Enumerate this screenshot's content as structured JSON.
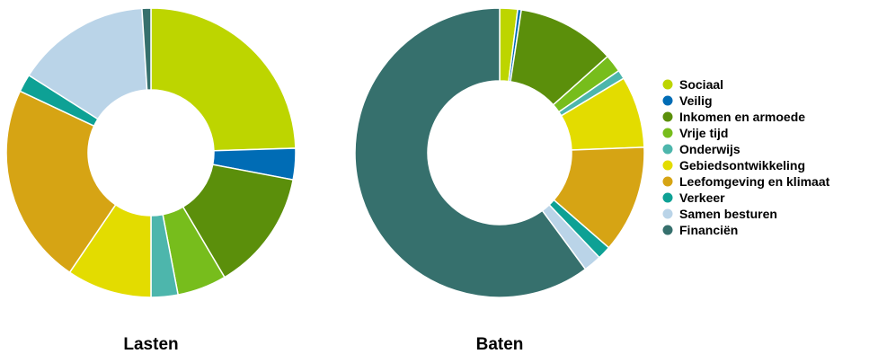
{
  "chart_data": [
    {
      "type": "pie",
      "title": "Lasten",
      "categories": [
        "Sociaal",
        "Veilig",
        "Inkomen en armoede",
        "Vrije tijd",
        "Onderwijs",
        "Gebiedsontwikkeling",
        "Leefomgeving en klimaat",
        "Verkeer",
        "Samen besturen",
        "Financiën"
      ],
      "values": [
        24.5,
        3.5,
        13.5,
        5.5,
        3.0,
        9.5,
        22.5,
        2.0,
        15.0,
        1.0
      ],
      "legend": "shared-right"
    },
    {
      "type": "pie",
      "title": "Baten",
      "categories": [
        "Sociaal",
        "Veilig",
        "Inkomen en armoede",
        "Vrije tijd",
        "Onderwijs",
        "Gebiedsontwikkeling",
        "Leefomgeving en klimaat",
        "Verkeer",
        "Samen besturen",
        "Financiën"
      ],
      "values": [
        2.0,
        0.4,
        11.0,
        2.0,
        1.0,
        8.0,
        12.0,
        1.5,
        2.0,
        60.1
      ],
      "legend": "right"
    }
  ],
  "legend": {
    "items": [
      {
        "label": "Sociaal",
        "color": "#bdd500"
      },
      {
        "label": "Veilig",
        "color": "#006cb5"
      },
      {
        "label": "Inkomen en armoede",
        "color": "#5b8f0b"
      },
      {
        "label": "Vrije tijd",
        "color": "#77bd1c"
      },
      {
        "label": "Onderwijs",
        "color": "#4db6ac"
      },
      {
        "label": "Gebiedsontwikkeling",
        "color": "#e3dc00"
      },
      {
        "label": "Leefomgeving en klimaat",
        "color": "#d6a414"
      },
      {
        "label": "Verkeer",
        "color": "#0ea195"
      },
      {
        "label": "Samen besturen",
        "color": "#bad4e8"
      },
      {
        "label": "Financiën",
        "color": "#36706d"
      }
    ]
  }
}
